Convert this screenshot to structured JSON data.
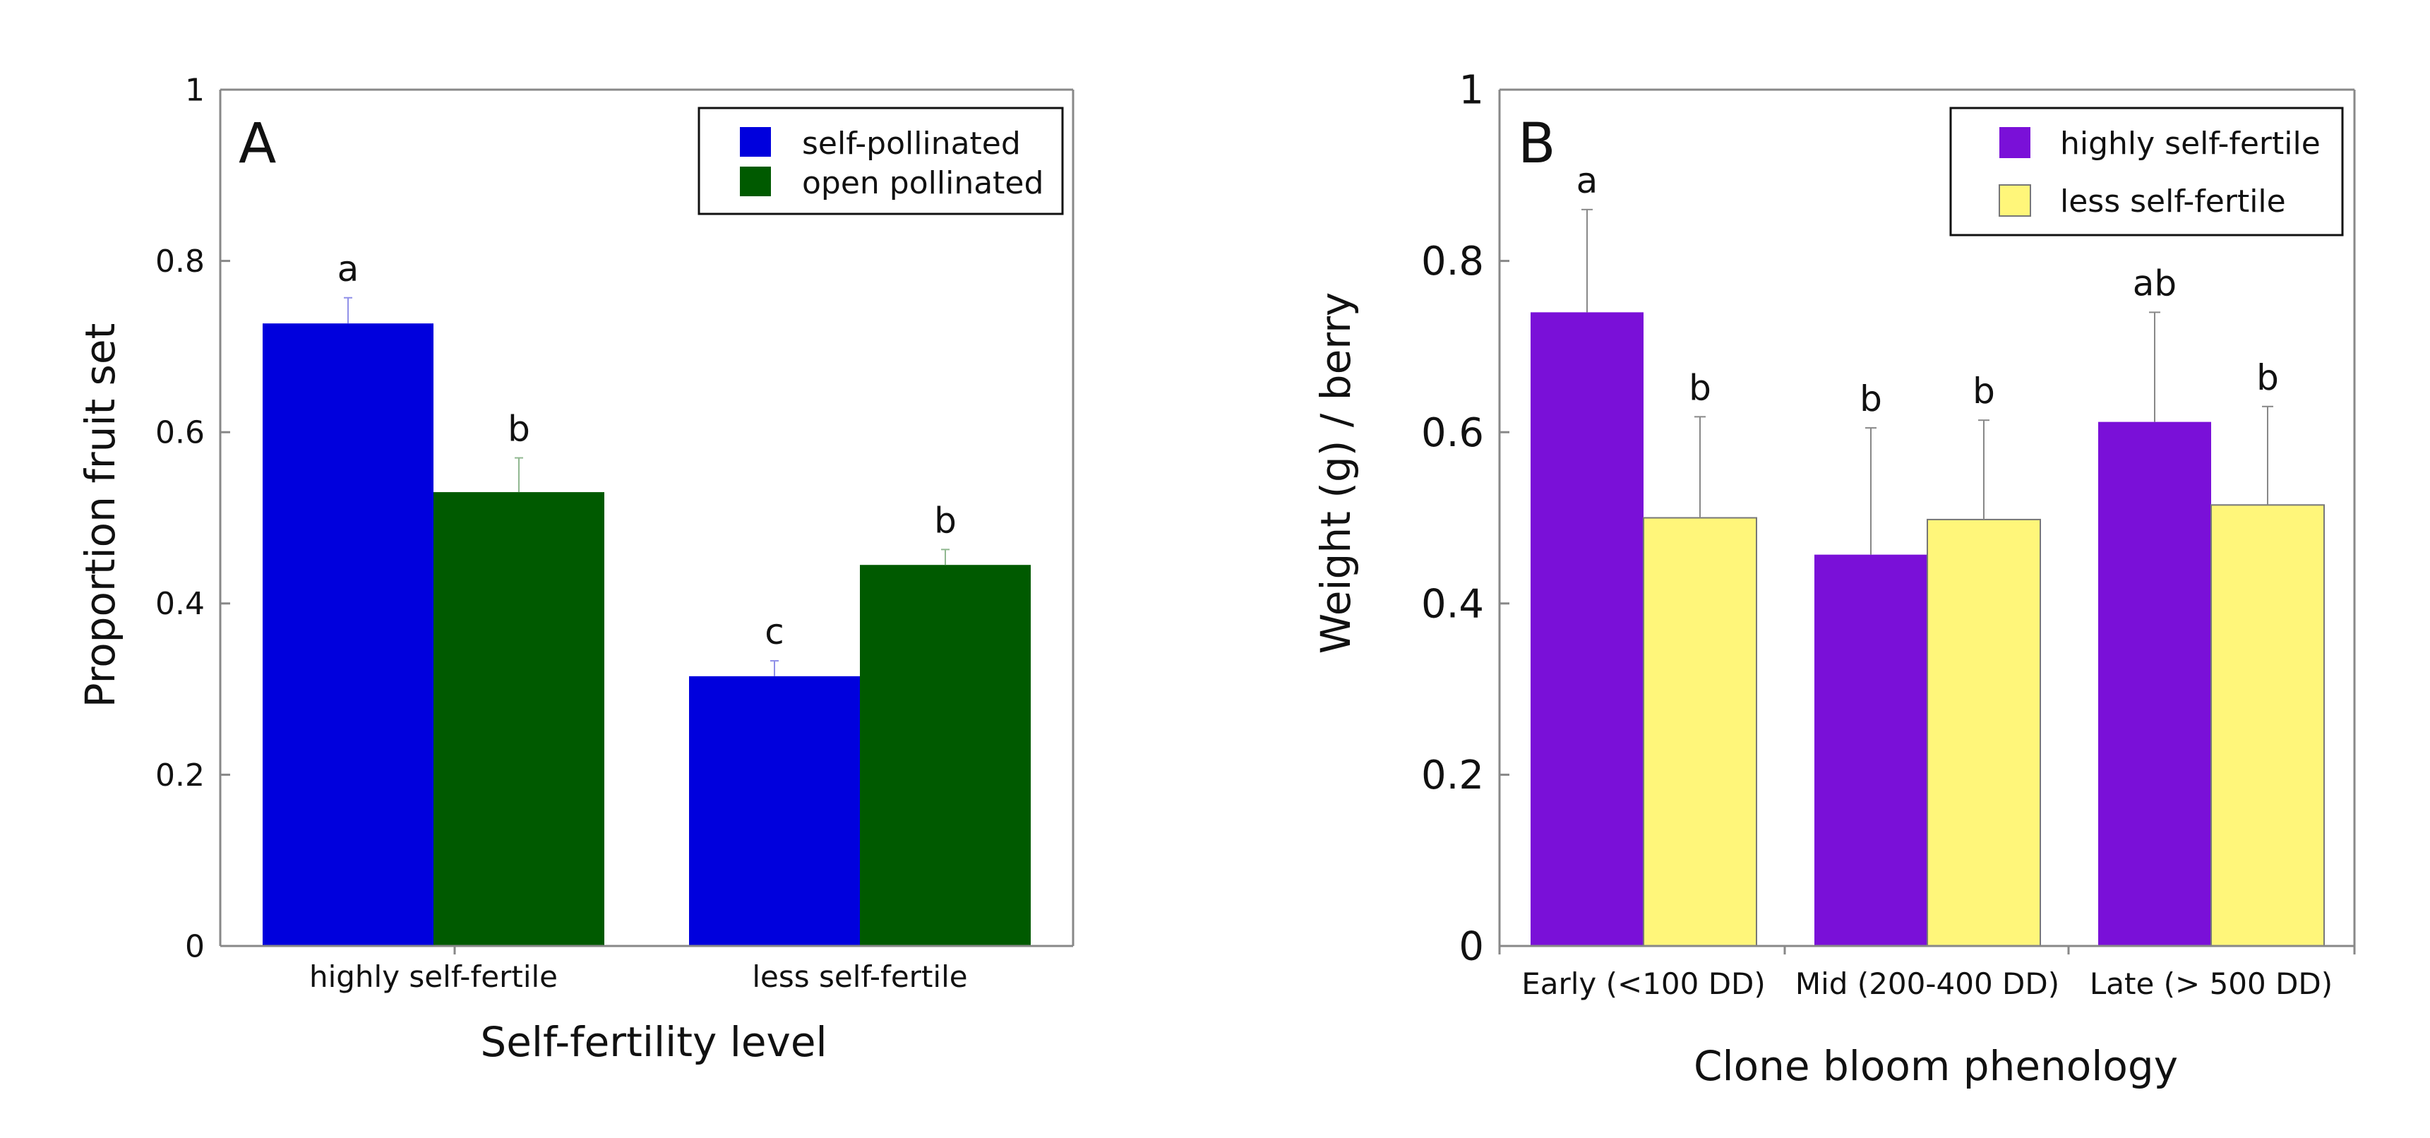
{
  "colors": {
    "blue": "#0000DD",
    "green": "#005A00",
    "purple": "#7A10D8",
    "yellow": "#FFF67A",
    "axis": "#888888",
    "err_a_blue": "#9090E8",
    "err_a_green": "#90B890",
    "err_b": "#888888"
  },
  "chart_data": [
    {
      "type": "bar",
      "panel_label": "A",
      "title": "",
      "xlabel": "Self-fertility level",
      "ylabel": "Proportion fruit set",
      "ylim": [
        0,
        1
      ],
      "yticks": [
        "0",
        "0.2",
        "0.4",
        "0.6",
        "0.8",
        "1"
      ],
      "categories": [
        "highly self-fertile",
        "less self-fertile"
      ],
      "series": [
        {
          "name": "self-pollinated",
          "values": [
            0.727,
            0.315
          ],
          "errors": [
            0.03,
            0.018
          ],
          "letters": [
            "a",
            "c"
          ]
        },
        {
          "name": "open pollinated",
          "values": [
            0.53,
            0.445
          ],
          "errors": [
            0.04,
            0.018
          ],
          "letters": [
            "b",
            "b"
          ]
        }
      ],
      "legend_position": "top-right"
    },
    {
      "type": "bar",
      "panel_label": "B",
      "title": "",
      "xlabel": "Clone bloom phenology",
      "ylabel": "Weight (g) / berry",
      "ylim": [
        0,
        1
      ],
      "yticks": [
        "0",
        "0.2",
        "0.4",
        "0.6",
        "0.8",
        "1"
      ],
      "categories": [
        "Early (<100 DD)",
        "Mid (200-400 DD)",
        "Late (> 500 DD)"
      ],
      "series": [
        {
          "name": "highly self-fertile",
          "values": [
            0.74,
            0.457,
            0.612
          ],
          "errors": [
            0.12,
            0.148,
            0.128
          ],
          "letters": [
            "a",
            "b",
            "ab"
          ]
        },
        {
          "name": "less self-fertile",
          "values": [
            0.5,
            0.498,
            0.515
          ],
          "errors": [
            0.118,
            0.116,
            0.115
          ],
          "letters": [
            "b",
            "b",
            "b"
          ]
        }
      ],
      "legend_position": "top-right"
    }
  ]
}
